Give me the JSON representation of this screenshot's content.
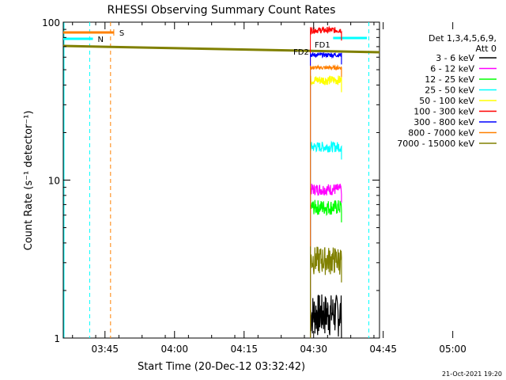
{
  "chart_data": {
    "type": "line",
    "title": "RHESSI Observing Summary Count Rates",
    "xlabel": "Start Time (20-Dec-12 03:32:42)",
    "ylabel": "Count Rate (s⁻¹ detector⁻¹)",
    "yscale": "log",
    "ylim": [
      1,
      100
    ],
    "xlim_minutes": [
      3.3,
      71.5
    ],
    "xticks": [
      {
        "label": "03:45",
        "min": 12.3
      },
      {
        "label": "04:00",
        "min": 27.3
      },
      {
        "label": "04:15",
        "min": 42.3
      },
      {
        "label": "04:30",
        "min": 57.3
      },
      {
        "label": "04:45",
        "min": 72.3
      },
      {
        "label": "05:00",
        "min": 87.3
      }
    ],
    "yticks": [
      {
        "label": "1",
        "value": 1
      },
      {
        "label": "10",
        "value": 10
      },
      {
        "label": "100",
        "value": 100
      }
    ],
    "legend_header": [
      "Det 1,3,4,5,6,9,",
      "Att 0"
    ],
    "legend_position": "right",
    "series": [
      {
        "name": "3 - 6 keV",
        "color": "#000000",
        "level_range": [
          1.0,
          1.9
        ]
      },
      {
        "name": "6 - 12 keV",
        "color": "#ff00ff",
        "level_range": [
          8.0,
          9.5
        ]
      },
      {
        "name": "12 - 25 keV",
        "color": "#00ff00",
        "level_range": [
          6.0,
          7.5
        ]
      },
      {
        "name": "25 - 50 keV",
        "color": "#00ffff",
        "level_range": [
          15.0,
          17.5
        ]
      },
      {
        "name": "50 - 100 keV",
        "color": "#ffff00",
        "level_range": [
          40.0,
          46.0
        ]
      },
      {
        "name": "100 - 300 keV",
        "color": "#ff0000",
        "level_range": [
          85.0,
          93.0
        ]
      },
      {
        "name": "300 - 800 keV",
        "color": "#0000ff",
        "level_range": [
          60.0,
          64.0
        ]
      },
      {
        "name": "800 - 7000 keV",
        "color": "#ff8000",
        "level_range": [
          50.0,
          53.0
        ]
      },
      {
        "name": "7000 - 15000 keV",
        "color": "#808000",
        "level_range": [
          2.5,
          3.8
        ]
      }
    ],
    "annotations": [
      {
        "label": "S",
        "color": "#ff8000"
      },
      {
        "label": "N",
        "color": "#00ffff"
      },
      {
        "label": "FD2",
        "color": "#808000"
      },
      {
        "label": "FD1",
        "color": "#808000"
      }
    ]
  },
  "footer": {
    "timestamp": "21-Oct-2021 19:20"
  }
}
